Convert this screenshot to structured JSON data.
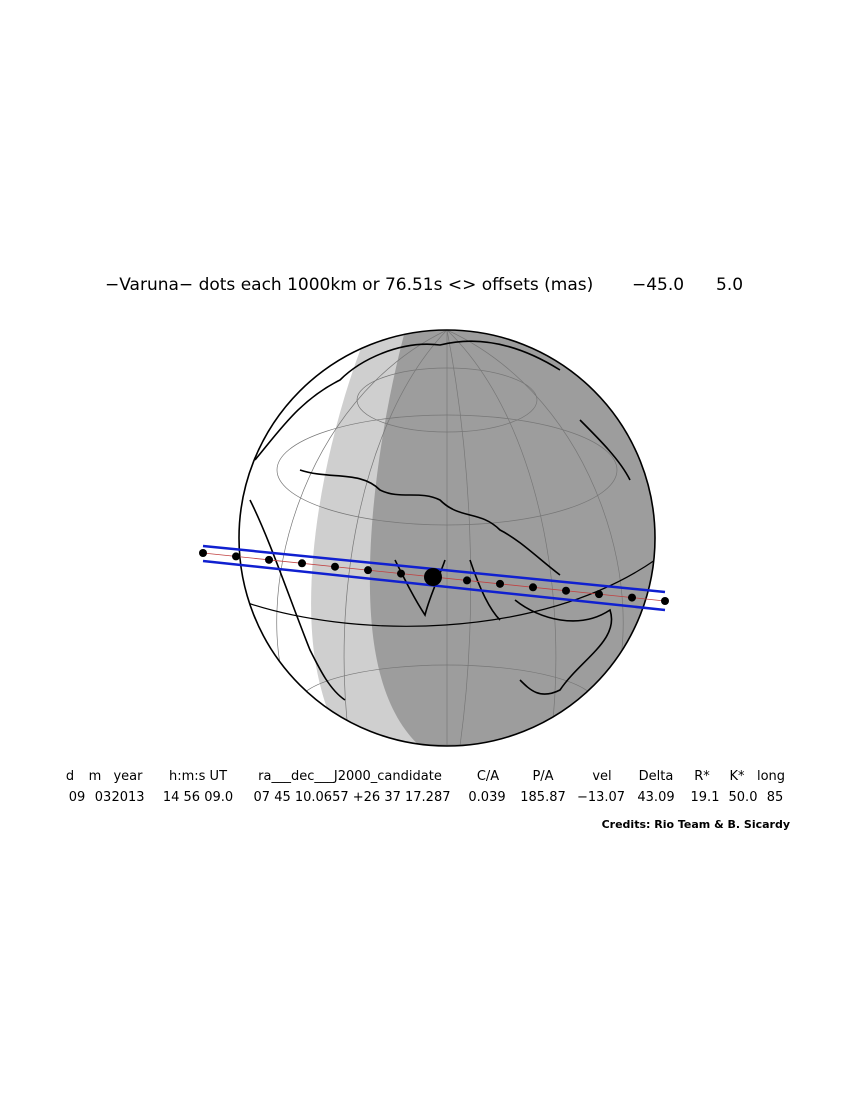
{
  "title": "−Varuna−  dots each 1000km or 76.51s <> offsets (mas)",
  "offsets": [
    "−45.0",
    "5.0"
  ],
  "table": {
    "header": [
      "d",
      "m",
      "year",
      "h:m:s UT",
      "ra___dec___J2000_candidate",
      "C/A",
      "P/A",
      "vel",
      "Delta",
      "R*",
      "K*",
      "long"
    ],
    "rows": [
      [
        "09",
        "03",
        "2013",
        "14 56 09.0",
        "07 45 10.0657 +26 37 17.287",
        "0.039",
        "185.87",
        "−13.07",
        "43.09",
        "19.1",
        "50.0",
        "85"
      ]
    ]
  },
  "credits": "Credits: Rio Team & B. Sicardy"
}
